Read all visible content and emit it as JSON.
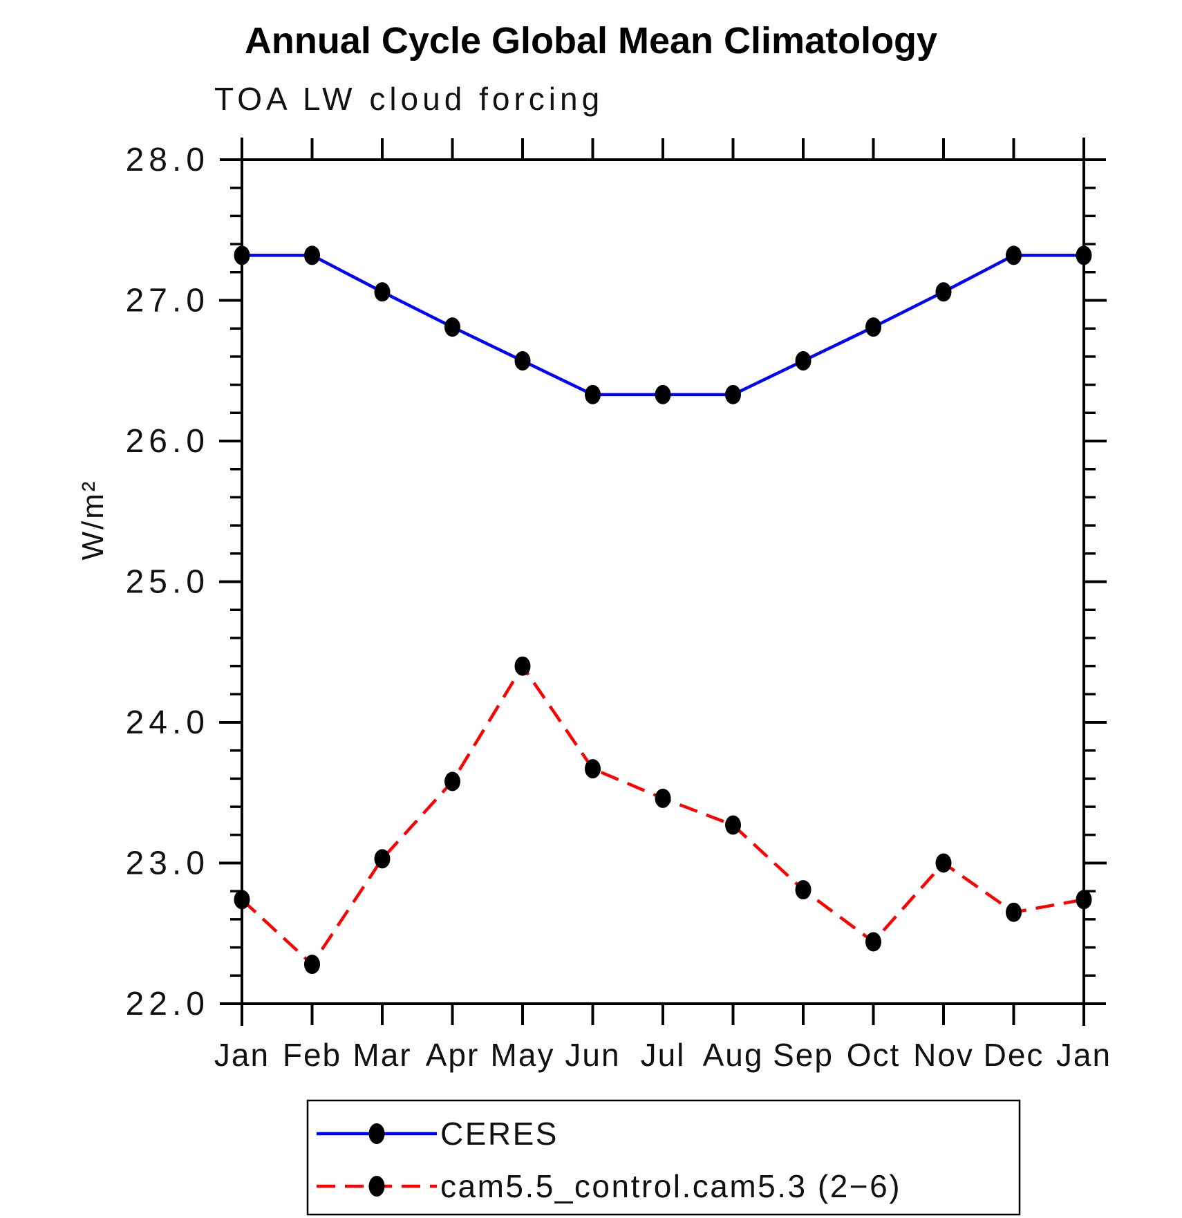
{
  "chart_data": {
    "type": "line",
    "title": "Annual Cycle Global Mean Climatology",
    "subtitle": "TOA LW cloud forcing",
    "ylabel": "W/m²",
    "x_categories": [
      "Jan",
      "Feb",
      "Mar",
      "Apr",
      "May",
      "Jun",
      "Jul",
      "Aug",
      "Sep",
      "Oct",
      "Nov",
      "Dec",
      "Jan"
    ],
    "ylim": [
      22.0,
      28.0
    ],
    "ytick_values": [
      22,
      23,
      24,
      25,
      26,
      27,
      28
    ],
    "ytick_labels": [
      "22.0",
      "23.0",
      "24.0",
      "25.0",
      "26.0",
      "27.0",
      "28.0"
    ],
    "ytick_minor_step": 0.2,
    "grid": false,
    "legend_position": "bottom",
    "colors": {
      "ceres_line": "#0000ff",
      "model_line": "#ff0000",
      "marker": "#000000",
      "axis": "#000000"
    },
    "series": [
      {
        "name": "CERES",
        "line_style": "solid",
        "line_color": "#0000ff",
        "marker": "filled-circle",
        "marker_color": "#000000",
        "values": [
          27.32,
          27.32,
          27.06,
          26.81,
          26.57,
          26.33,
          26.33,
          26.33,
          26.57,
          26.81,
          27.06,
          27.32,
          27.32
        ]
      },
      {
        "name": "cam5.5_control.cam5.3 (2−6)",
        "line_style": "dashed",
        "line_color": "#ff0000",
        "marker": "filled-circle",
        "marker_color": "#000000",
        "values": [
          22.74,
          22.28,
          23.03,
          23.58,
          24.4,
          23.67,
          23.46,
          23.27,
          22.81,
          22.44,
          23.0,
          22.65,
          22.74
        ]
      }
    ]
  }
}
